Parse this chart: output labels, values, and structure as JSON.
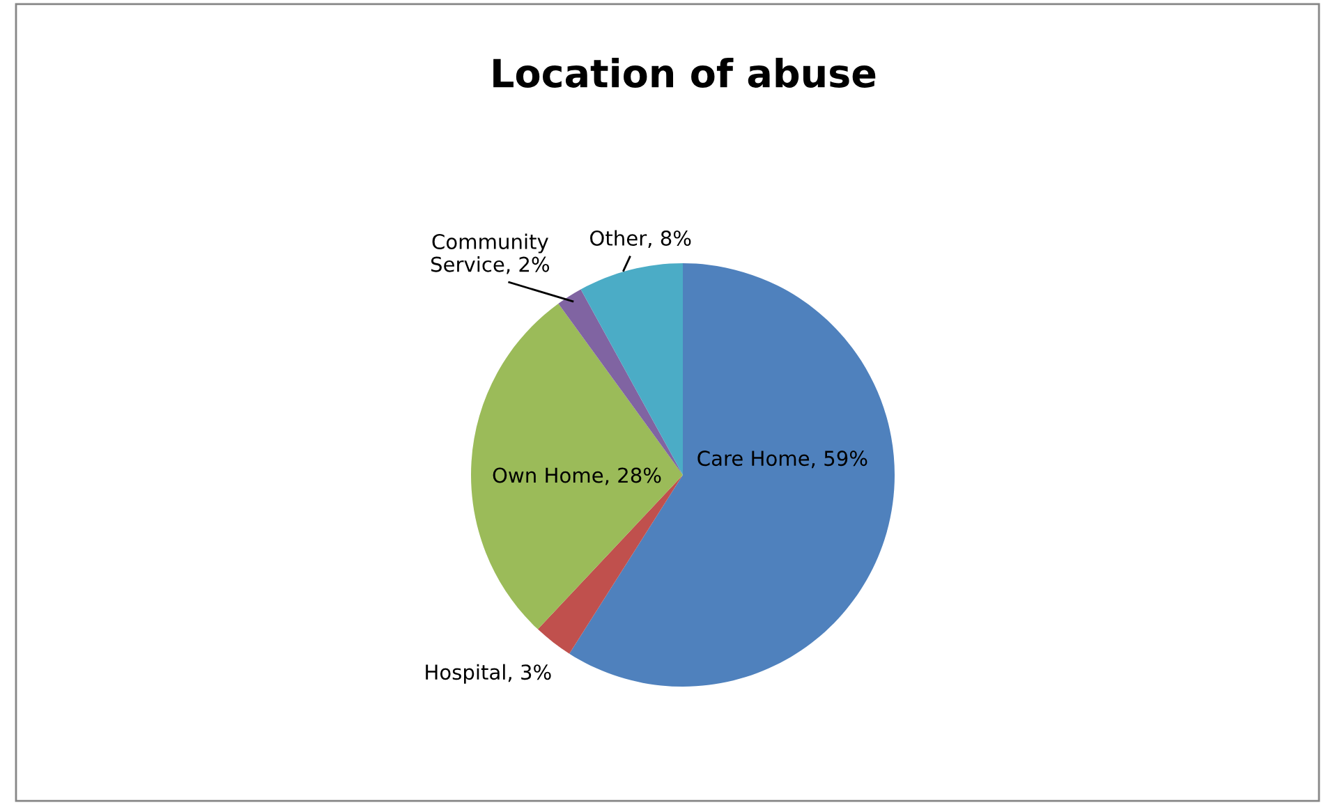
{
  "chart_data": {
    "type": "pie",
    "title": "Location of abuse",
    "categories": [
      "Care Home",
      "Hospital",
      "Own Home",
      "Community Service",
      "Other"
    ],
    "values": [
      59,
      3,
      28,
      2,
      8
    ],
    "colors": [
      "#4f81bd",
      "#c0504d",
      "#9bbb59",
      "#8064a2",
      "#4bacc6"
    ],
    "value_labels": [
      "59%",
      "3%",
      "28%",
      "2%",
      "8%"
    ]
  }
}
